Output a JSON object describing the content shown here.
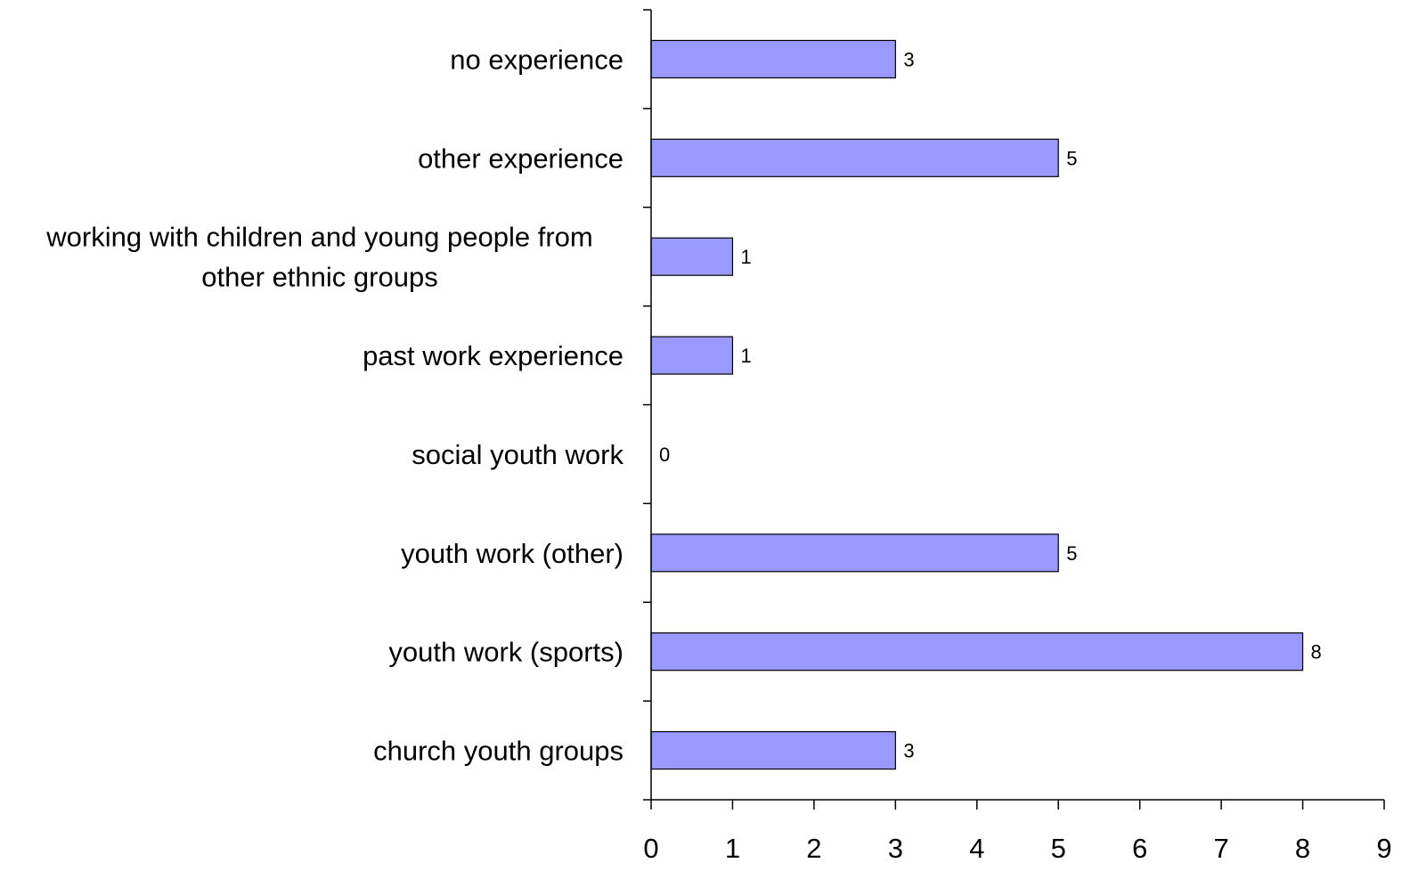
{
  "chart_data": {
    "type": "bar",
    "orientation": "horizontal",
    "categories": [
      "no experience",
      "other experience",
      "working with children and young people from other ethnic groups",
      "past work experience",
      "social youth work",
      "youth work (other)",
      "youth work (sports)",
      "church youth groups"
    ],
    "category_label_lines": [
      [
        "no experience"
      ],
      [
        "other experience"
      ],
      [
        "working with children and young people from",
        "other ethnic groups"
      ],
      [
        "past work experience"
      ],
      [
        "social youth work"
      ],
      [
        "youth work (other)"
      ],
      [
        "youth work (sports)"
      ],
      [
        "church youth groups"
      ]
    ],
    "values": [
      3,
      5,
      1,
      1,
      0,
      5,
      8,
      3
    ],
    "data_labels": [
      "3",
      "5",
      "1",
      "1",
      "0",
      "5",
      "8",
      "3"
    ],
    "x_ticks": [
      "0",
      "1",
      "2",
      "3",
      "4",
      "5",
      "6",
      "7",
      "8",
      "9"
    ],
    "xlim": [
      0,
      9
    ],
    "title": "",
    "xlabel": "",
    "ylabel": "",
    "grid": false,
    "legend": "none",
    "bar_color": "#9999ff",
    "bar_edge_color": "#000000"
  }
}
